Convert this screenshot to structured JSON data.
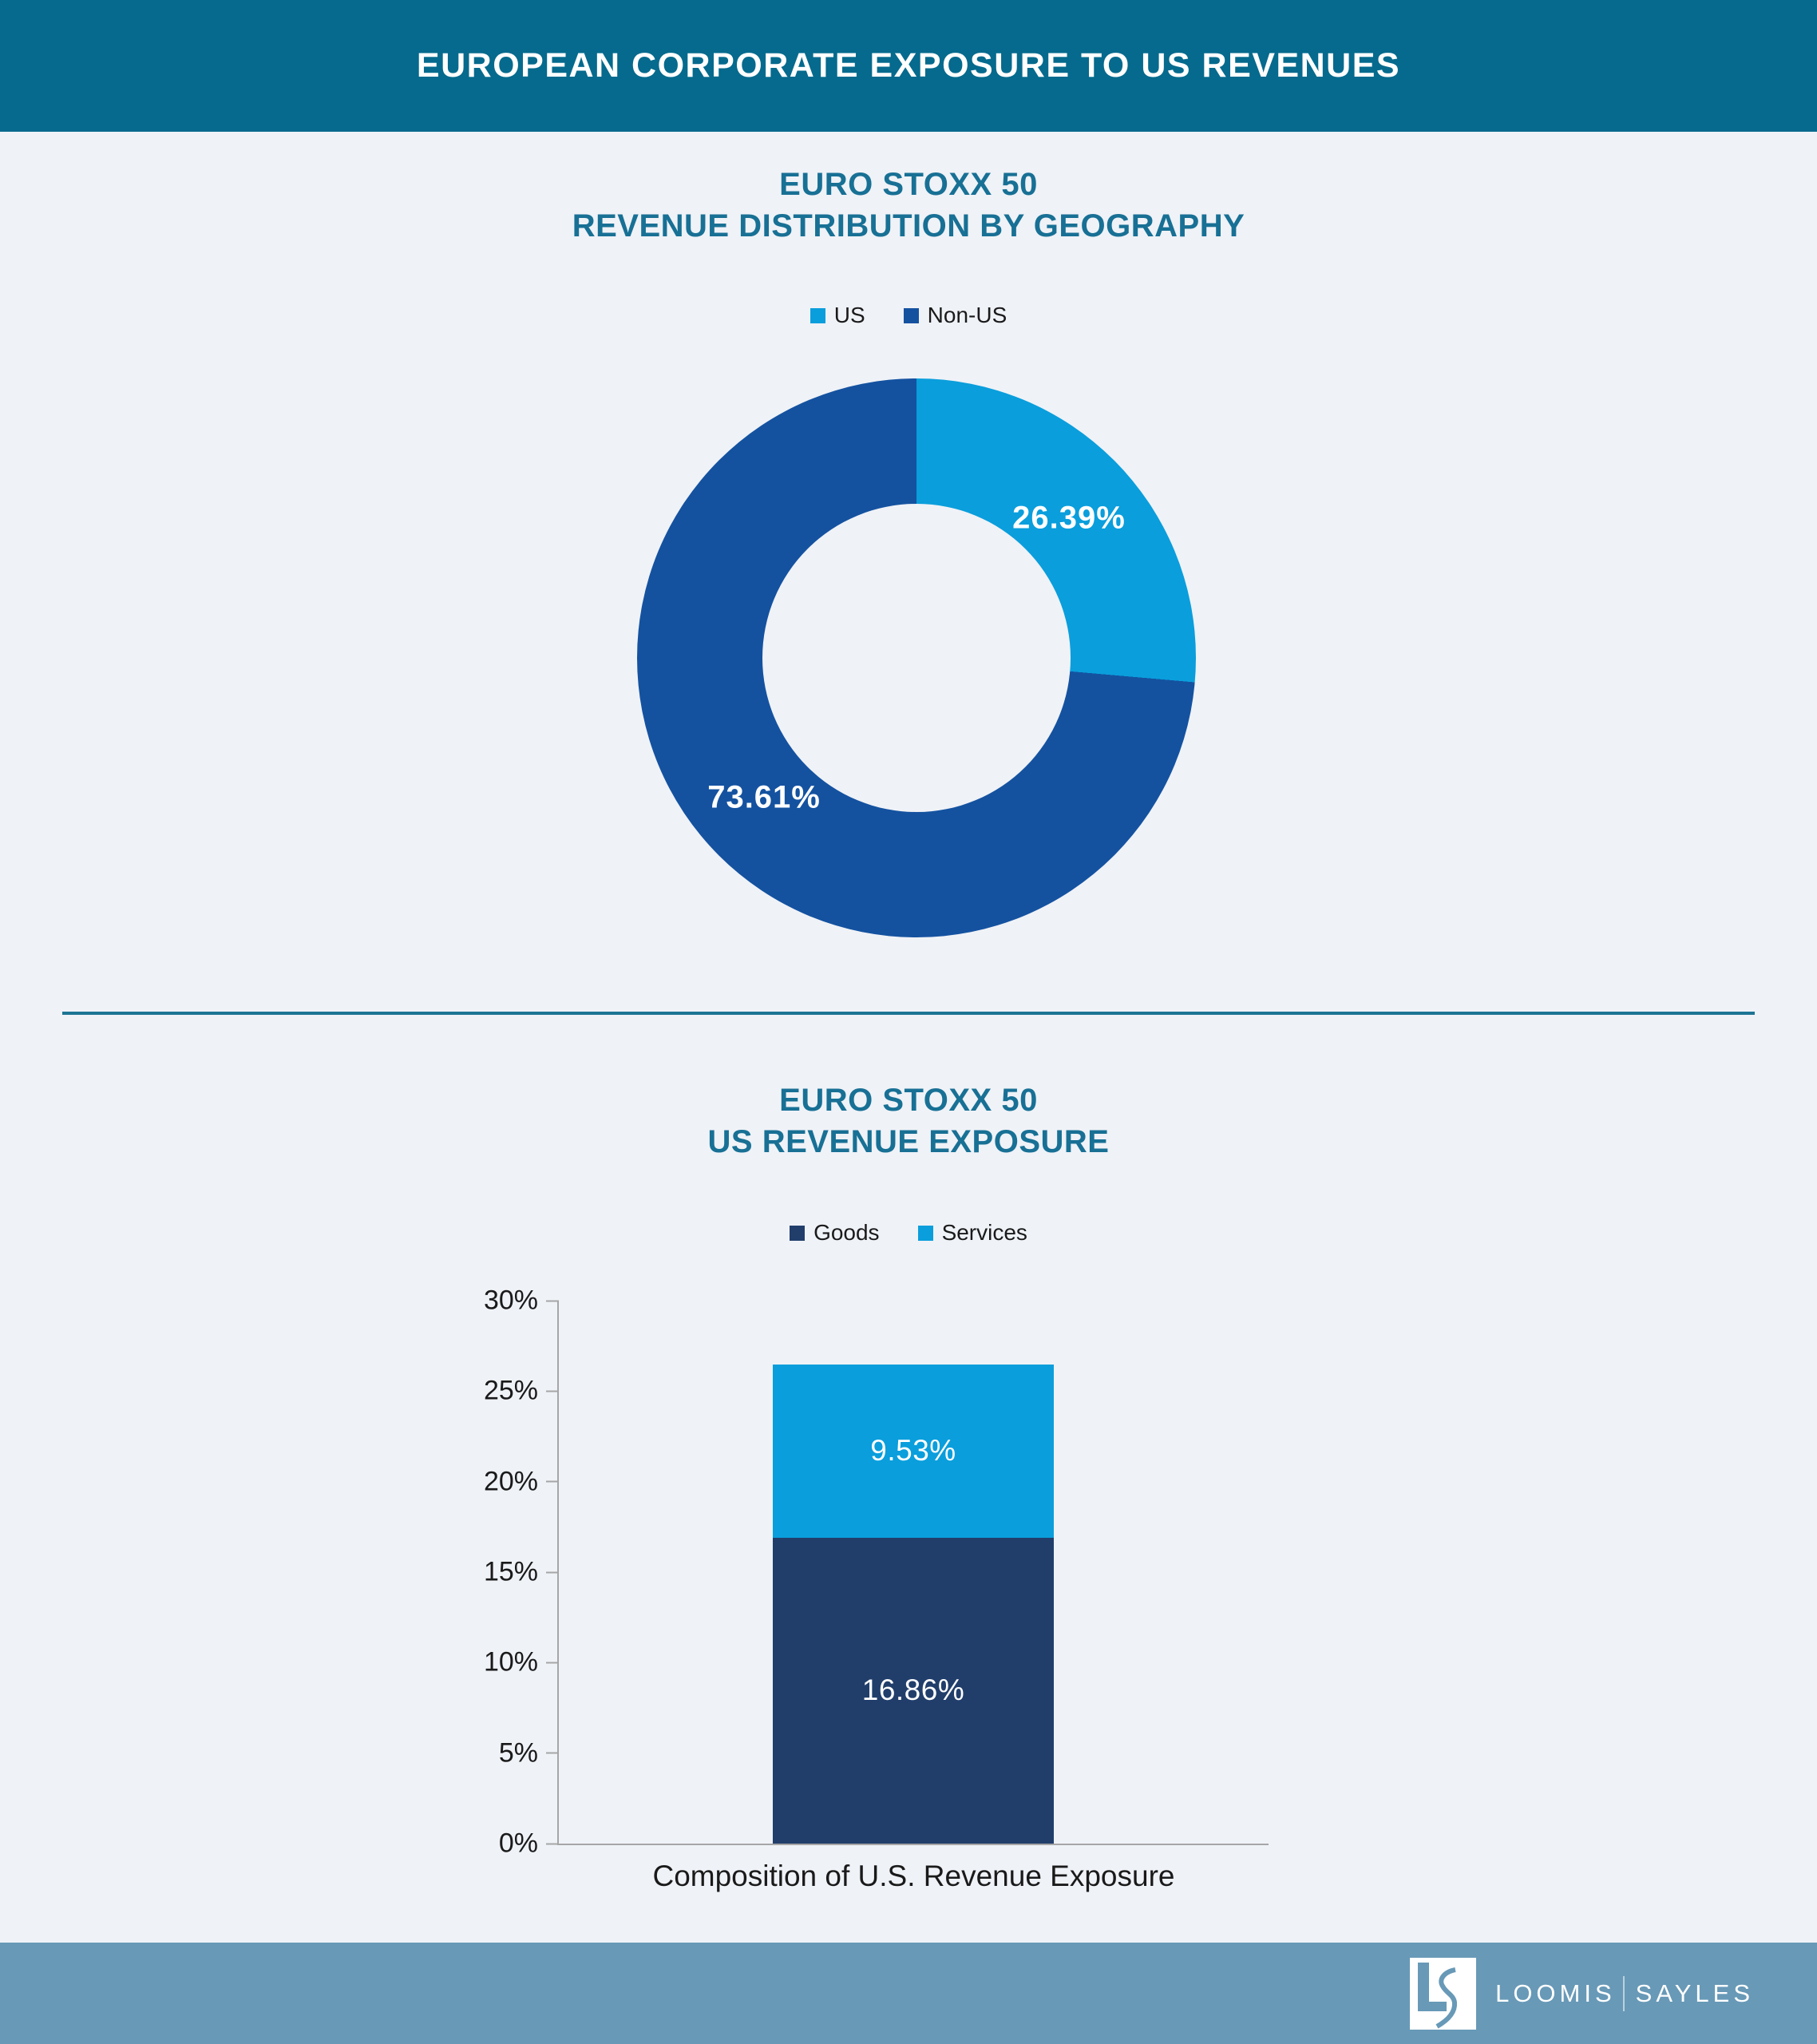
{
  "header": {
    "title": "EUROPEAN CORPORATE EXPOSURE TO US REVENUES"
  },
  "theme": {
    "background": "#EFF2F7",
    "header_bg": "#056A8D",
    "title_color": "#187095",
    "divider_color": "#1C7494",
    "footer_bg": "#6899B7",
    "axis_color": "#A6A6A6",
    "text_color": "#1A1A1A"
  },
  "chart_data": [
    {
      "type": "pie",
      "subtype": "donut",
      "title_lines": [
        "EURO STOXX 50",
        "REVENUE DISTRIBUTION BY GEOGRAPHY"
      ],
      "legend": [
        {
          "label": "US",
          "color": "#0A9EDC"
        },
        {
          "label": "Non-US",
          "color": "#1452A0"
        }
      ],
      "series": [
        {
          "name": "US",
          "value": 26.39,
          "label": "26.39%",
          "color": "#0A9EDC"
        },
        {
          "name": "Non-US",
          "value": 73.61,
          "label": "73.61%",
          "color": "#1452A0"
        }
      ],
      "start_angle_deg": 0,
      "direction": "clockwise",
      "inner_radius_ratio": 0.55,
      "data_label_color": "#FFFFFF",
      "legend_position": "top"
    },
    {
      "type": "bar",
      "subtype": "stacked",
      "title_lines": [
        "EURO STOXX 50",
        "US REVENUE EXPOSURE"
      ],
      "legend": [
        {
          "label": "Goods",
          "color": "#213E6B"
        },
        {
          "label": "Services",
          "color": "#0A9EDC"
        }
      ],
      "categories": [
        "Composition of U.S. Revenue Exposure"
      ],
      "series": [
        {
          "name": "Goods",
          "values": [
            16.86
          ],
          "label": "16.86%",
          "color": "#213E6B"
        },
        {
          "name": "Services",
          "values": [
            9.53
          ],
          "label": "9.53%",
          "color": "#0A9EDC"
        }
      ],
      "stack_total_label": "26.39",
      "ylim": [
        0,
        30
      ],
      "yticks": [
        "0%",
        "5%",
        "10%",
        "15%",
        "20%",
        "25%",
        "30%"
      ],
      "xlabel": "Composition of U.S. Revenue Exposure",
      "grid": false,
      "legend_position": "top",
      "data_label_color": "#FFFFFF"
    }
  ],
  "footer": {
    "brand_left": "LOOMIS",
    "brand_right": "SAYLES",
    "logo": "loomis-sayles-ls-monogram"
  }
}
